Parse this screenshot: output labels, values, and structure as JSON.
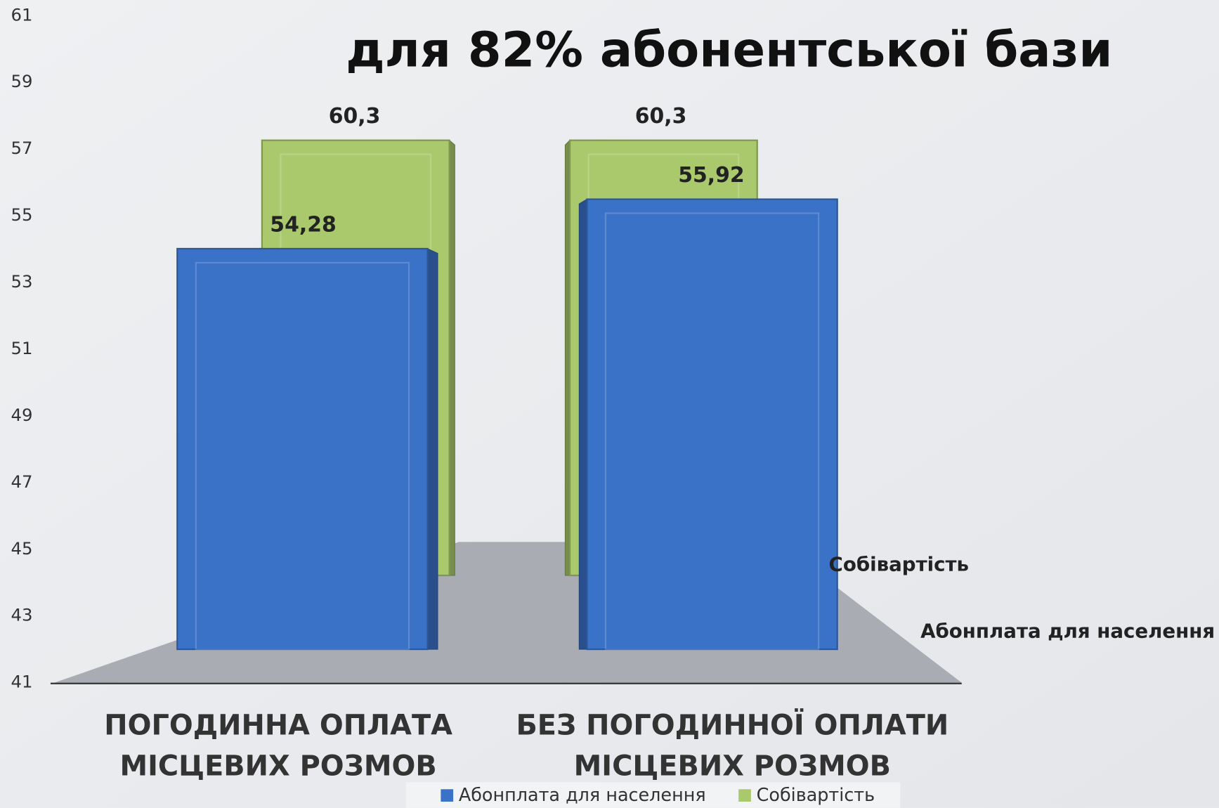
{
  "chart_data": {
    "type": "bar3d",
    "title": "для 82% абонентської бази",
    "categories": [
      "ПОГОДИННА ОПЛАТА\nМІСЦЕВИХ РОЗМОВ",
      "БЕЗ ПОГОДИННОЇ ОПЛАТИ\nМІСЦЕВИХ РОЗМОВ"
    ],
    "series": [
      {
        "name": "Абонплата для населення",
        "color": "#3a72c8",
        "values": [
          54.28,
          55.92
        ],
        "value_labels": [
          "54,28",
          "55,92"
        ]
      },
      {
        "name": "Собівартість",
        "color": "#a9c96c",
        "values": [
          60.3,
          60.3
        ],
        "value_labels": [
          "60,3",
          "60,3"
        ]
      }
    ],
    "ylim": [
      41,
      61
    ],
    "yticks": [
      41,
      43,
      45,
      47,
      49,
      51,
      53,
      55,
      57,
      59,
      61
    ],
    "legend": "bottom"
  }
}
